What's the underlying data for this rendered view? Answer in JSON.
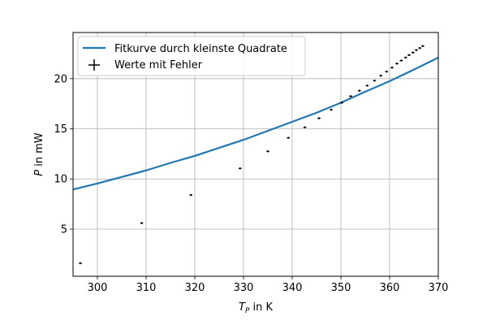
{
  "chart_data": {
    "type": "scatter",
    "xlabel_main": "T",
    "xlabel_sub": "P",
    "xlabel_rest": " in K",
    "ylabel_main": "P",
    "ylabel_rest": " in mW",
    "xlim": [
      295,
      370
    ],
    "ylim": [
      0.3,
      24.6
    ],
    "xticks": [
      300,
      310,
      320,
      330,
      340,
      350,
      360,
      370
    ],
    "yticks": [
      5,
      10,
      15,
      20
    ],
    "grid": true,
    "legend_position": "top-left",
    "colors": {
      "fit": "#1f77b4",
      "points": "#000000",
      "grid": "#b0b0b0"
    },
    "series": [
      {
        "name": "Fitkurve durch kleinste Quadrate",
        "kind": "line",
        "x": [
          295,
          300,
          305,
          310,
          315,
          320,
          325,
          330,
          335,
          340,
          345,
          350,
          355,
          360,
          365,
          370
        ],
        "y": [
          8.95,
          9.55,
          10.2,
          10.85,
          11.6,
          12.3,
          13.1,
          13.9,
          14.8,
          15.7,
          16.6,
          17.6,
          18.7,
          19.75,
          20.9,
          22.1
        ]
      },
      {
        "name": "Werte mit Fehler",
        "kind": "errorbar",
        "x": [
          296.5,
          309.1,
          319.2,
          329.3,
          335.0,
          339.2,
          342.6,
          345.5,
          348.0,
          350.2,
          352.0,
          353.8,
          355.4,
          356.9,
          358.2,
          359.4,
          360.5,
          361.5,
          362.4,
          363.3,
          364.0,
          364.8,
          365.5,
          366.2,
          366.8
        ],
        "y": [
          1.6,
          5.6,
          8.4,
          11.05,
          12.75,
          14.1,
          15.15,
          16.05,
          16.9,
          17.6,
          18.25,
          18.8,
          19.3,
          19.8,
          20.3,
          20.7,
          21.1,
          21.5,
          21.8,
          22.1,
          22.35,
          22.6,
          22.85,
          23.05,
          23.25
        ],
        "xerr": 0.3,
        "yerr": 0.1
      }
    ]
  }
}
